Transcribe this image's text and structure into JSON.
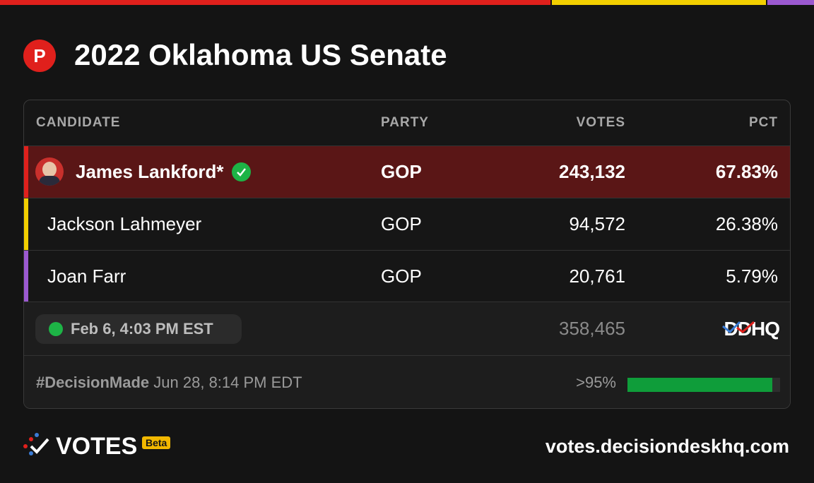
{
  "header": {
    "party_badge": "P",
    "title": "2022 Oklahoma US Senate"
  },
  "table": {
    "columns": [
      "CANDIDATE",
      "PARTY",
      "VOTES",
      "PCT"
    ],
    "rows": [
      {
        "candidate": "James Lankford*",
        "party": "GOP",
        "votes": "243,132",
        "pct": "67.83%",
        "color": "#e0201c",
        "winner": true
      },
      {
        "candidate": "Jackson Lahmeyer",
        "party": "GOP",
        "votes": "94,572",
        "pct": "26.38%",
        "color": "#f2cf00",
        "winner": false
      },
      {
        "candidate": "Joan Farr",
        "party": "GOP",
        "votes": "20,761",
        "pct": "5.79%",
        "color": "#9b59d0",
        "winner": false
      }
    ]
  },
  "summary": {
    "updated": "Feb 6, 4:03 PM EST",
    "total_votes": "358,465",
    "source_logo": "DDHQ"
  },
  "decision": {
    "label": "#DecisionMade",
    "time": "Jun 28, 8:14 PM EDT",
    "reporting": ">95%"
  },
  "footer": {
    "brand": "VOTES",
    "badge": "Beta",
    "url": "votes.decisiondeskhq.com"
  }
}
